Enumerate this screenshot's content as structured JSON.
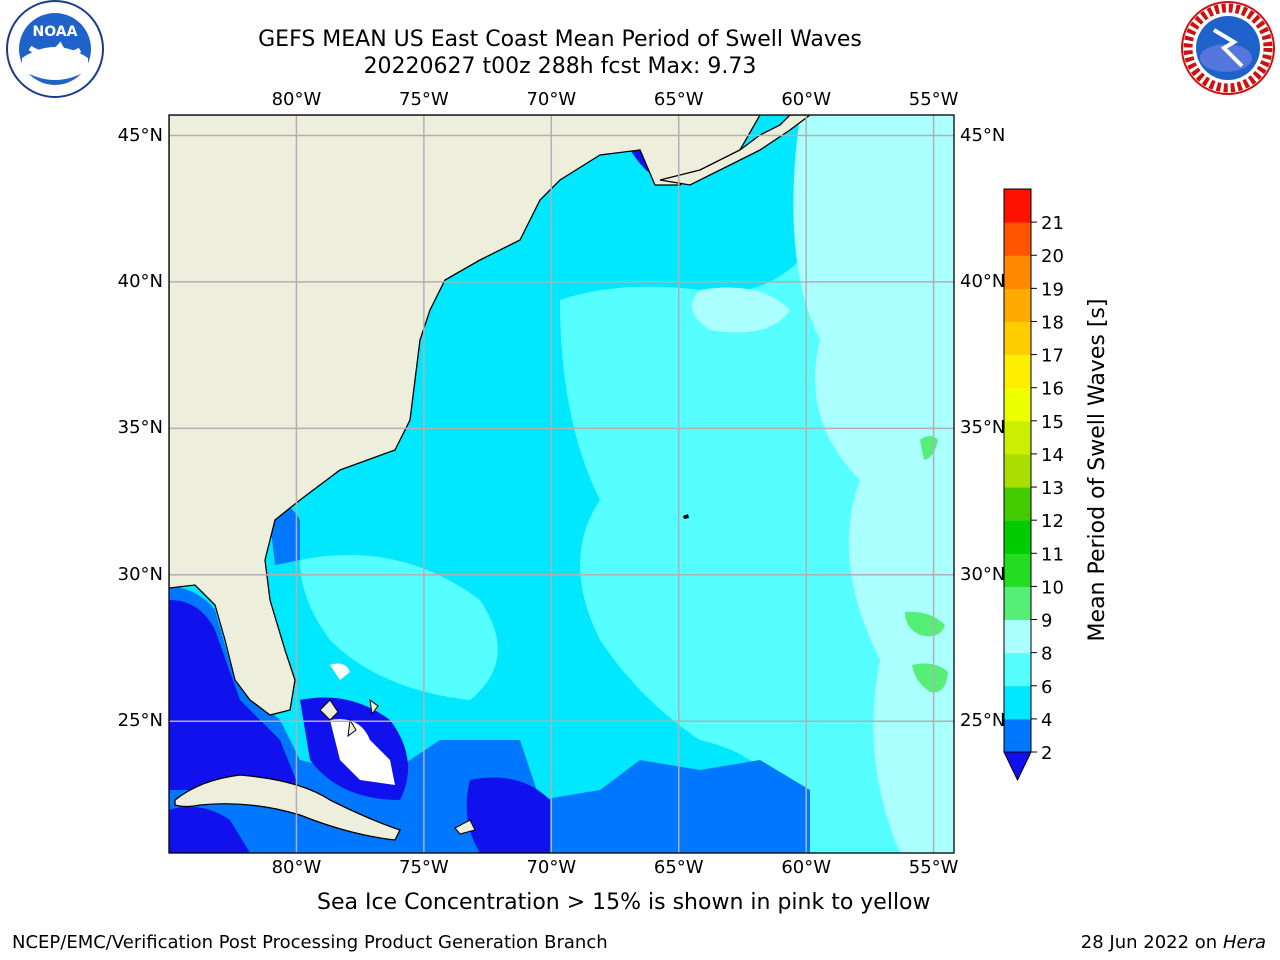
{
  "header": {
    "title_line1": "GEFS MEAN US East Coast Mean Period of Swell Waves",
    "title_line2": "20220627 t00z 288h fcst   Max: 9.73"
  },
  "map": {
    "lon_labels": [
      "80°W",
      "75°W",
      "70°W",
      "65°W",
      "60°W",
      "55°W"
    ],
    "lat_labels": [
      "45°N",
      "40°N",
      "35°N",
      "30°N",
      "25°N"
    ],
    "lon_values": [
      -80,
      -75,
      -70,
      -65,
      -60,
      -55
    ],
    "lat_values": [
      45,
      40,
      35,
      30,
      25
    ],
    "lon_range": [
      -85,
      -54.2
    ],
    "lat_range": [
      20.5,
      45.7
    ],
    "colors": {
      "land": "#eeeedd",
      "coast": "#000000",
      "grid": "#b0b0b0",
      "no_data": "#ffffff"
    }
  },
  "colorbar": {
    "label": "Mean Period of Swell Waves [s]",
    "ticks": [
      "2",
      "4",
      "6",
      "8",
      "9",
      "10",
      "11",
      "12",
      "13",
      "14",
      "15",
      "16",
      "17",
      "18",
      "19",
      "20",
      "21"
    ],
    "levels": [
      2,
      4,
      6,
      8,
      9,
      10,
      11,
      12,
      13,
      14,
      15,
      16,
      17,
      18,
      19,
      20,
      21
    ],
    "colors": [
      "#0077ff",
      "#00e8ff",
      "#55ffff",
      "#aaffff",
      "#55ee77",
      "#22dd22",
      "#00cc00",
      "#44cc00",
      "#aadd00",
      "#ccee00",
      "#eeff00",
      "#ffee00",
      "#ffcc00",
      "#ffaa00",
      "#ff8800",
      "#ff5500",
      "#ff1100"
    ],
    "under_color": "#1111ee"
  },
  "notes": {
    "sea_ice": "Sea Ice Concentration > 15% is shown in pink to yellow"
  },
  "footer": {
    "left": "NCEP/EMC/Verification Post Processing Product Generation Branch",
    "date": "28 Jun 2022 on",
    "host": "Hera"
  },
  "logos": {
    "left_text": "NOAA",
    "right_text": "NATIONAL WEATHER SERVICE"
  }
}
